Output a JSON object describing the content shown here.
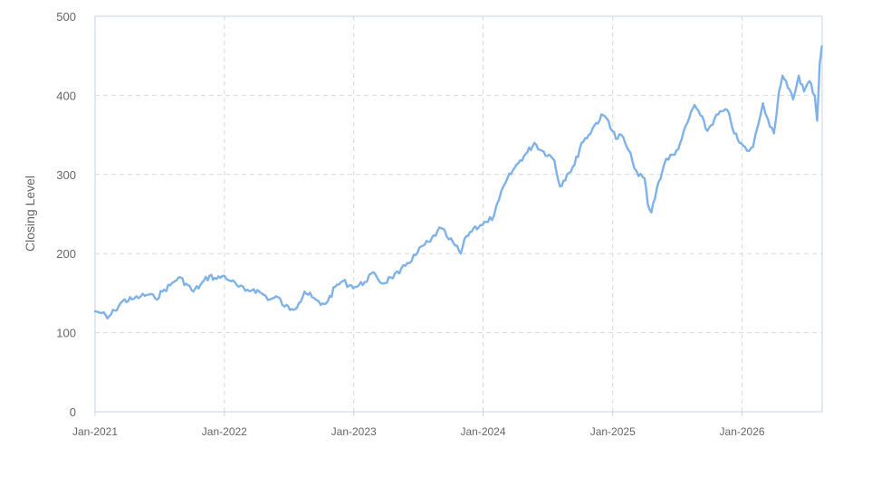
{
  "chart_data": {
    "type": "line",
    "title": "",
    "xlabel": "",
    "ylabel": "Closing Level",
    "ylim": [
      0,
      500
    ],
    "yticks": [
      0,
      100,
      200,
      300,
      400,
      500
    ],
    "xlim": [
      "2021-01-01",
      "2026-08-15"
    ],
    "xticks": [
      {
        "date": "2021-01-01",
        "label": "Jan-2021"
      },
      {
        "date": "2022-01-01",
        "label": "Jan-2022"
      },
      {
        "date": "2023-01-01",
        "label": "Jan-2023"
      },
      {
        "date": "2024-01-01",
        "label": "Jan-2024"
      },
      {
        "date": "2025-01-01",
        "label": "Jan-2025"
      },
      {
        "date": "2026-01-01",
        "label": "Jan-2026"
      }
    ],
    "grid": true,
    "legend": "none",
    "series": [
      {
        "color": "#7eb2e8",
        "points": [
          [
            "2021-01-01",
            127
          ],
          [
            "2021-01-20",
            125
          ],
          [
            "2021-02-05",
            118
          ],
          [
            "2021-02-25",
            128
          ],
          [
            "2021-03-20",
            140
          ],
          [
            "2021-04-15",
            142
          ],
          [
            "2021-05-10",
            146
          ],
          [
            "2021-06-01",
            148
          ],
          [
            "2021-06-20",
            143
          ],
          [
            "2021-07-10",
            152
          ],
          [
            "2021-08-01",
            160
          ],
          [
            "2021-08-25",
            170
          ],
          [
            "2021-09-15",
            162
          ],
          [
            "2021-10-05",
            152
          ],
          [
            "2021-10-25",
            160
          ],
          [
            "2021-11-20",
            172
          ],
          [
            "2021-12-10",
            168
          ],
          [
            "2022-01-01",
            172
          ],
          [
            "2022-01-20",
            165
          ],
          [
            "2022-02-10",
            158
          ],
          [
            "2022-03-01",
            153
          ],
          [
            "2022-03-25",
            155
          ],
          [
            "2022-04-15",
            150
          ],
          [
            "2022-05-10",
            142
          ],
          [
            "2022-06-01",
            145
          ],
          [
            "2022-06-20",
            133
          ],
          [
            "2022-07-10",
            130
          ],
          [
            "2022-07-30",
            137
          ],
          [
            "2022-08-15",
            152
          ],
          [
            "2022-09-05",
            145
          ],
          [
            "2022-09-30",
            135
          ],
          [
            "2022-10-20",
            140
          ],
          [
            "2022-11-10",
            158
          ],
          [
            "2022-12-01",
            165
          ],
          [
            "2022-12-20",
            160
          ],
          [
            "2023-01-10",
            158
          ],
          [
            "2023-02-01",
            164
          ],
          [
            "2023-02-20",
            175
          ],
          [
            "2023-03-10",
            168
          ],
          [
            "2023-03-25",
            162
          ],
          [
            "2023-04-15",
            170
          ],
          [
            "2023-05-10",
            175
          ],
          [
            "2023-06-01",
            188
          ],
          [
            "2023-06-25",
            198
          ],
          [
            "2023-07-15",
            210
          ],
          [
            "2023-08-05",
            215
          ],
          [
            "2023-08-25",
            228
          ],
          [
            "2023-09-05",
            232
          ],
          [
            "2023-09-20",
            222
          ],
          [
            "2023-10-15",
            210
          ],
          [
            "2023-10-30",
            200
          ],
          [
            "2023-11-15",
            222
          ],
          [
            "2023-12-05",
            232
          ],
          [
            "2023-12-25",
            236
          ],
          [
            "2024-01-15",
            240
          ],
          [
            "2024-02-01",
            248
          ],
          [
            "2024-02-15",
            268
          ],
          [
            "2024-03-05",
            290
          ],
          [
            "2024-03-25",
            305
          ],
          [
            "2024-04-15",
            318
          ],
          [
            "2024-05-05",
            328
          ],
          [
            "2024-05-25",
            340
          ],
          [
            "2024-06-15",
            330
          ],
          [
            "2024-07-05",
            325
          ],
          [
            "2024-07-20",
            318
          ],
          [
            "2024-08-05",
            285
          ],
          [
            "2024-08-25",
            300
          ],
          [
            "2024-09-15",
            312
          ],
          [
            "2024-10-05",
            340
          ],
          [
            "2024-10-25",
            350
          ],
          [
            "2024-11-15",
            365
          ],
          [
            "2024-12-05",
            375
          ],
          [
            "2024-12-20",
            368
          ],
          [
            "2025-01-10",
            345
          ],
          [
            "2025-01-25",
            350
          ],
          [
            "2025-02-05",
            340
          ],
          [
            "2025-02-25",
            318
          ],
          [
            "2025-03-15",
            298
          ],
          [
            "2025-04-01",
            295
          ],
          [
            "2025-04-10",
            262
          ],
          [
            "2025-04-20",
            252
          ],
          [
            "2025-05-10",
            290
          ],
          [
            "2025-06-01",
            320
          ],
          [
            "2025-06-25",
            325
          ],
          [
            "2025-07-15",
            345
          ],
          [
            "2025-08-05",
            372
          ],
          [
            "2025-08-20",
            388
          ],
          [
            "2025-09-05",
            375
          ],
          [
            "2025-09-25",
            355
          ],
          [
            "2025-10-15",
            370
          ],
          [
            "2025-11-05",
            380
          ],
          [
            "2025-11-25",
            378
          ],
          [
            "2025-12-10",
            352
          ],
          [
            "2025-12-25",
            340
          ],
          [
            "2026-01-15",
            330
          ],
          [
            "2026-02-01",
            335
          ],
          [
            "2026-02-15",
            362
          ],
          [
            "2026-03-01",
            390
          ],
          [
            "2026-03-15",
            370
          ],
          [
            "2026-04-01",
            352
          ],
          [
            "2026-04-15",
            405
          ],
          [
            "2026-04-25",
            425
          ],
          [
            "2026-05-10",
            410
          ],
          [
            "2026-05-25",
            395
          ],
          [
            "2026-06-10",
            425
          ],
          [
            "2026-06-25",
            405
          ],
          [
            "2026-07-10",
            418
          ],
          [
            "2026-07-25",
            400
          ],
          [
            "2026-08-01",
            368
          ],
          [
            "2026-08-08",
            440
          ],
          [
            "2026-08-14",
            462
          ]
        ]
      }
    ]
  }
}
